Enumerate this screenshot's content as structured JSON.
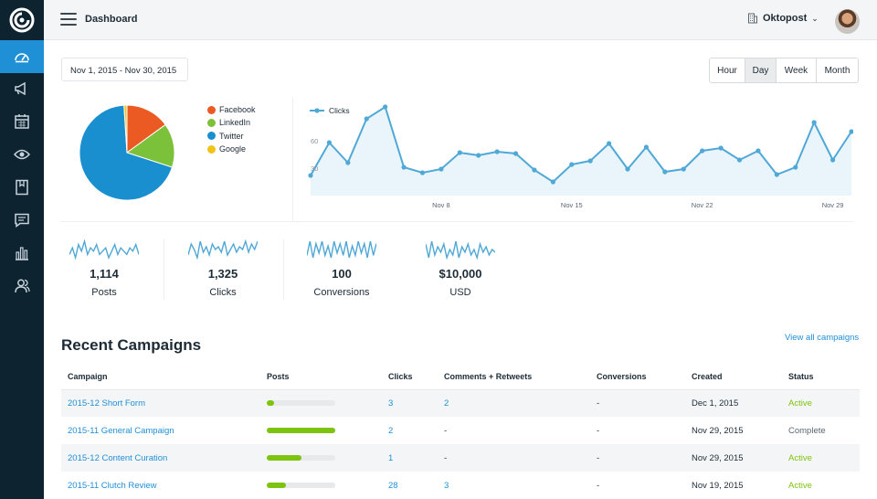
{
  "header": {
    "title": "Dashboard",
    "org_name": "Oktopost"
  },
  "sidebar": {
    "items": [
      {
        "icon": "speedometer-icon",
        "active": true
      },
      {
        "icon": "megaphone-icon",
        "active": false
      },
      {
        "icon": "calendar-icon",
        "active": false
      },
      {
        "icon": "eye-icon",
        "active": false
      },
      {
        "icon": "bookmark-icon",
        "active": false
      },
      {
        "icon": "chat-icon",
        "active": false
      },
      {
        "icon": "bar-chart-icon",
        "active": false
      },
      {
        "icon": "users-icon",
        "active": false
      }
    ]
  },
  "filters": {
    "date_range": "Nov 1, 2015 - Nov 30, 2015",
    "ranges": [
      "Hour",
      "Day",
      "Week",
      "Month"
    ],
    "selected_range": "Day"
  },
  "colors": {
    "accent": "#1f8fd6",
    "active_status": "#7dc411",
    "sidebar_bg": "#0e2330",
    "line": "#4fa8d6"
  },
  "chart_data": [
    {
      "type": "pie",
      "series": [
        {
          "name": "Facebook",
          "value": 15,
          "color": "#ec5a24"
        },
        {
          "name": "LinkedIn",
          "value": 15,
          "color": "#7cc13a"
        },
        {
          "name": "Twitter",
          "value": 69,
          "color": "#1a8fd0"
        },
        {
          "name": "Google",
          "value": 1,
          "color": "#f3c318"
        }
      ]
    },
    {
      "type": "area",
      "series": [
        {
          "name": "Clicks",
          "values": [
            22,
            58,
            36,
            84,
            97,
            31,
            25,
            29,
            47,
            44,
            48,
            46,
            28,
            15,
            34,
            38,
            57,
            29,
            53,
            26,
            29,
            49,
            52,
            39,
            49,
            23,
            31,
            80,
            39,
            70
          ]
        }
      ],
      "x": [
        1,
        2,
        3,
        4,
        5,
        6,
        7,
        8,
        9,
        10,
        11,
        12,
        13,
        14,
        15,
        16,
        17,
        18,
        19,
        20,
        21,
        22,
        23,
        24,
        25,
        26,
        27,
        28,
        29,
        30
      ],
      "x_ticks": [
        {
          "x": 8,
          "label": "Nov 8"
        },
        {
          "x": 15,
          "label": "Nov 15"
        },
        {
          "x": 22,
          "label": "Nov 22"
        },
        {
          "x": 29,
          "label": "Nov 29"
        }
      ],
      "y_ticks": [
        30,
        60
      ],
      "ylim": [
        0,
        110
      ],
      "grid": false,
      "legend": "top-left"
    }
  ],
  "stats": [
    {
      "value": "1,114",
      "label": "Posts",
      "spark": [
        5,
        7,
        4,
        8,
        6,
        9,
        5,
        7,
        6,
        8,
        5,
        6,
        7,
        4,
        6,
        8,
        5,
        7,
        6,
        5,
        7,
        6,
        8,
        5
      ]
    },
    {
      "value": "1,325",
      "label": "Clicks",
      "spark": [
        4,
        8,
        6,
        3,
        9,
        5,
        7,
        4,
        8,
        6,
        7,
        5,
        9,
        4,
        6,
        8,
        5,
        7,
        6,
        9,
        5,
        8,
        6,
        9
      ]
    },
    {
      "value": "100",
      "label": "Conversions",
      "spark": [
        3,
        9,
        2,
        8,
        4,
        9,
        3,
        7,
        2,
        9,
        4,
        8,
        3,
        9,
        2,
        7,
        3,
        9,
        4,
        8,
        2,
        9,
        3,
        8
      ]
    },
    {
      "value": "$10,000",
      "label": "USD",
      "spark": [
        8,
        3,
        9,
        4,
        7,
        5,
        8,
        3,
        6,
        4,
        9,
        3,
        7,
        5,
        8,
        4,
        6,
        3,
        8,
        5,
        7,
        4,
        6,
        5
      ]
    }
  ],
  "campaigns": {
    "title": "Recent Campaigns",
    "view_all": "View all campaigns",
    "columns": [
      "Campaign",
      "Posts",
      "Clicks",
      "Comments + Retweets",
      "Conversions",
      "Created",
      "Status"
    ],
    "rows": [
      {
        "name": "2015-12 Short Form",
        "posts_progress": 0.1,
        "clicks": "3",
        "comments": "2",
        "conversions": "-",
        "created": "Dec 1, 2015",
        "status": "Active"
      },
      {
        "name": "2015-11 General Campaign",
        "posts_progress": 1.0,
        "clicks": "2",
        "comments": "-",
        "conversions": "-",
        "created": "Nov 29, 2015",
        "status": "Complete"
      },
      {
        "name": "2015-12 Content Curation",
        "posts_progress": 0.5,
        "clicks": "1",
        "comments": "-",
        "conversions": "-",
        "created": "Nov 29, 2015",
        "status": "Active"
      },
      {
        "name": "2015-11 Clutch Review",
        "posts_progress": 0.28,
        "clicks": "28",
        "comments": "3",
        "conversions": "-",
        "created": "Nov 19, 2015",
        "status": "Active"
      }
    ]
  }
}
